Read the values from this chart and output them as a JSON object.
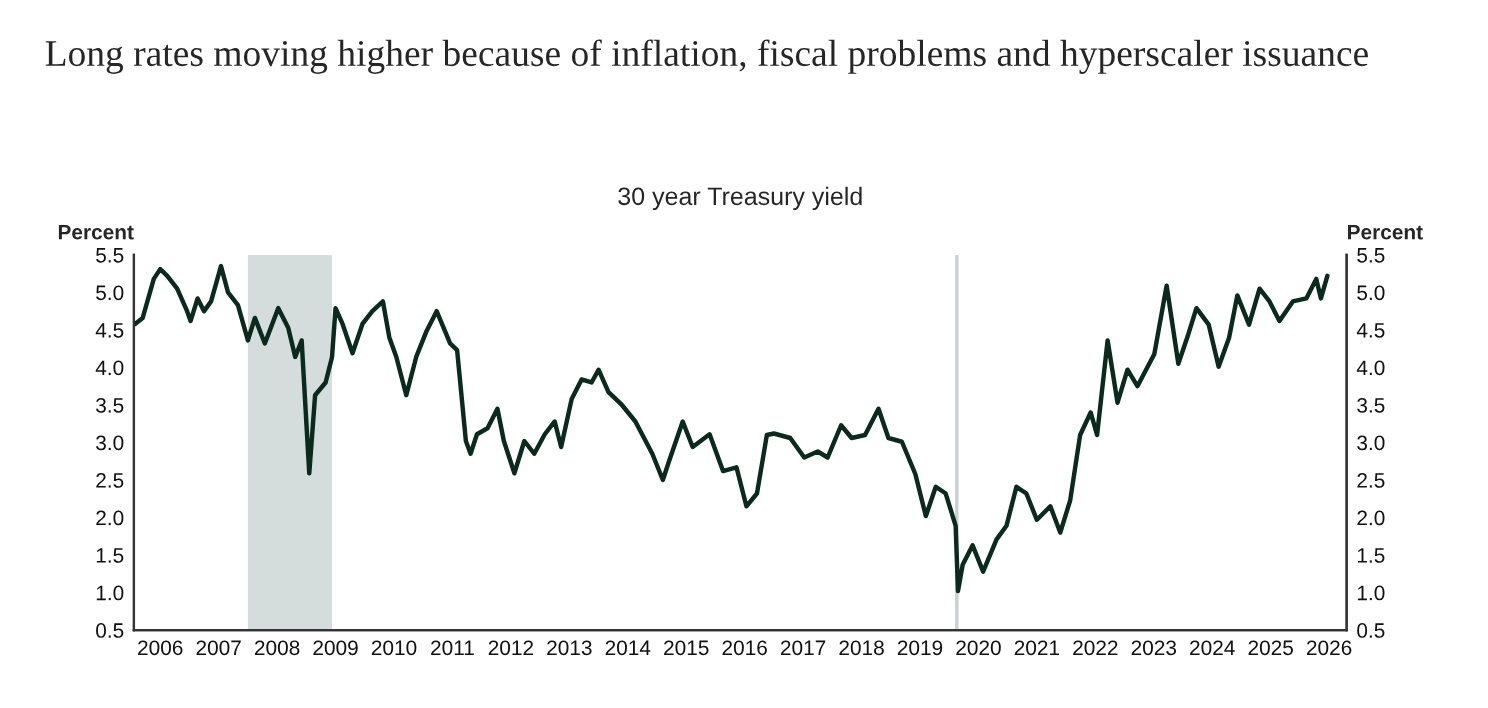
{
  "chart_data": {
    "type": "line",
    "title": "Long rates moving higher because of inflation, fiscal problems and hyperscaler issuance",
    "subtitle": "30 year Treasury yield",
    "ylabel": "Percent",
    "y2label": "Percent",
    "x": [
      2006.07,
      2006.2,
      2006.39,
      2006.5,
      2006.62,
      2006.79,
      2006.96,
      2007.02,
      2007.14,
      2007.25,
      2007.37,
      2007.54,
      2007.66,
      2007.83,
      2008.0,
      2008.12,
      2008.29,
      2008.52,
      2008.69,
      2008.81,
      2008.92,
      2009.05,
      2009.15,
      2009.33,
      2009.44,
      2009.5,
      2009.62,
      2009.79,
      2009.96,
      2010.13,
      2010.31,
      2010.42,
      2010.54,
      2010.71,
      2010.88,
      2011.06,
      2011.23,
      2011.46,
      2011.58,
      2011.73,
      2011.81,
      2011.92,
      2012.1,
      2012.27,
      2012.38,
      2012.56,
      2012.73,
      2012.9,
      2013.08,
      2013.25,
      2013.36,
      2013.54,
      2013.71,
      2013.88,
      2014.0,
      2014.17,
      2014.4,
      2014.63,
      2014.92,
      2015.1,
      2015.21,
      2015.44,
      2015.61,
      2015.9,
      2016.13,
      2016.36,
      2016.53,
      2016.71,
      2016.88,
      2017.0,
      2017.28,
      2017.52,
      2017.75,
      2017.92,
      2018.15,
      2018.33,
      2018.56,
      2018.79,
      2018.96,
      2019.19,
      2019.42,
      2019.6,
      2019.77,
      2019.94,
      2020.11,
      2020.15,
      2020.23,
      2020.4,
      2020.58,
      2020.81,
      2020.98,
      2021.15,
      2021.32,
      2021.5,
      2021.73,
      2021.9,
      2022.07,
      2022.24,
      2022.42,
      2022.53,
      2022.71,
      2022.88,
      2023.05,
      2023.22,
      2023.51,
      2023.72,
      2023.92,
      2024.09,
      2024.23,
      2024.44,
      2024.61,
      2024.79,
      2024.93,
      2025.13,
      2025.31,
      2025.48,
      2025.65,
      2025.88,
      2026.11,
      2026.28,
      2026.36,
      2026.47
    ],
    "series": [
      {
        "color": "#0b2a1e",
        "values": [
          4.58,
          4.66,
          5.18,
          5.31,
          5.22,
          5.05,
          4.75,
          4.62,
          4.92,
          4.75,
          4.88,
          5.35,
          5.0,
          4.83,
          4.36,
          4.66,
          4.32,
          4.79,
          4.53,
          4.14,
          4.36,
          2.59,
          3.63,
          3.8,
          4.14,
          4.79,
          4.58,
          4.19,
          4.58,
          4.75,
          4.88,
          4.4,
          4.14,
          3.63,
          4.14,
          4.49,
          4.75,
          4.32,
          4.23,
          3.02,
          2.85,
          3.11,
          3.19,
          3.45,
          3.02,
          2.59,
          3.02,
          2.85,
          3.11,
          3.28,
          2.94,
          3.58,
          3.84,
          3.8,
          3.97,
          3.67,
          3.5,
          3.28,
          2.85,
          2.5,
          2.76,
          3.28,
          2.94,
          3.11,
          2.62,
          2.67,
          2.15,
          2.32,
          3.1,
          3.12,
          3.06,
          2.8,
          2.88,
          2.8,
          3.23,
          3.06,
          3.1,
          3.45,
          3.06,
          3.01,
          2.58,
          2.02,
          2.41,
          2.32,
          1.89,
          1.02,
          1.37,
          1.63,
          1.28,
          1.71,
          1.89,
          2.41,
          2.32,
          1.97,
          2.15,
          1.8,
          2.23,
          3.1,
          3.4,
          3.1,
          4.36,
          3.53,
          3.97,
          3.75,
          4.18,
          5.09,
          4.05,
          4.44,
          4.79,
          4.57,
          4.01,
          4.4,
          4.96,
          4.57,
          5.05,
          4.88,
          4.62,
          4.88,
          4.92,
          5.18,
          4.92,
          5.22
        ]
      }
    ],
    "xlim": [
      2006.05,
      2026.8
    ],
    "xticks": [
      {
        "value": 2006.5,
        "label": "2006"
      },
      {
        "value": 2007.5,
        "label": "2007"
      },
      {
        "value": 2008.5,
        "label": "2008"
      },
      {
        "value": 2009.5,
        "label": "2009"
      },
      {
        "value": 2010.5,
        "label": "2010"
      },
      {
        "value": 2011.5,
        "label": "2011"
      },
      {
        "value": 2012.5,
        "label": "2012"
      },
      {
        "value": 2013.5,
        "label": "2013"
      },
      {
        "value": 2014.5,
        "label": "2014"
      },
      {
        "value": 2015.5,
        "label": "2015"
      },
      {
        "value": 2016.5,
        "label": "2016"
      },
      {
        "value": 2017.5,
        "label": "2017"
      },
      {
        "value": 2018.5,
        "label": "2018"
      },
      {
        "value": 2019.5,
        "label": "2019"
      },
      {
        "value": 2020.5,
        "label": "2020"
      },
      {
        "value": 2021.5,
        "label": "2021"
      },
      {
        "value": 2022.5,
        "label": "2022"
      },
      {
        "value": 2023.5,
        "label": "2023"
      },
      {
        "value": 2024.5,
        "label": "2024"
      },
      {
        "value": 2025.5,
        "label": "2025"
      },
      {
        "value": 2026.5,
        "label": "2026"
      }
    ],
    "ylim": [
      0.5,
      5.5
    ],
    "yticks": [
      {
        "value": 0.5,
        "label": "0.5"
      },
      {
        "value": 1,
        "label": "1.0"
      },
      {
        "value": 1.5,
        "label": "1.5"
      },
      {
        "value": 2,
        "label": "2.0"
      },
      {
        "value": 2.5,
        "label": "2.5"
      },
      {
        "value": 3,
        "label": "3.0"
      },
      {
        "value": 3.5,
        "label": "3.5"
      },
      {
        "value": 4,
        "label": "4.0"
      },
      {
        "value": 4.5,
        "label": "4.5"
      },
      {
        "value": 5,
        "label": "5.0"
      },
      {
        "value": 5.5,
        "label": "5.5"
      }
    ],
    "y2lim": [
      0.5,
      5.5
    ],
    "y2ticks": [
      {
        "value": 0.5,
        "label": "0.5"
      },
      {
        "value": 1,
        "label": "1.0"
      },
      {
        "value": 1.5,
        "label": "1.5"
      },
      {
        "value": 2,
        "label": "2.0"
      },
      {
        "value": 2.5,
        "label": "2.5"
      },
      {
        "value": 3,
        "label": "3.0"
      },
      {
        "value": 3.5,
        "label": "3.5"
      },
      {
        "value": 4,
        "label": "4.0"
      },
      {
        "value": 4.5,
        "label": "4.5"
      },
      {
        "value": 5,
        "label": "5.0"
      },
      {
        "value": 5.5,
        "label": "5.5"
      }
    ],
    "bands": [
      {
        "axis": "x",
        "from": 2008.0,
        "to": 2009.44,
        "color": "#d5dcdc"
      }
    ],
    "ref_lines": [
      {
        "axis": "x",
        "value": 2020.13,
        "color": "#c8cfcf"
      }
    ],
    "grid": false,
    "legend": false
  }
}
